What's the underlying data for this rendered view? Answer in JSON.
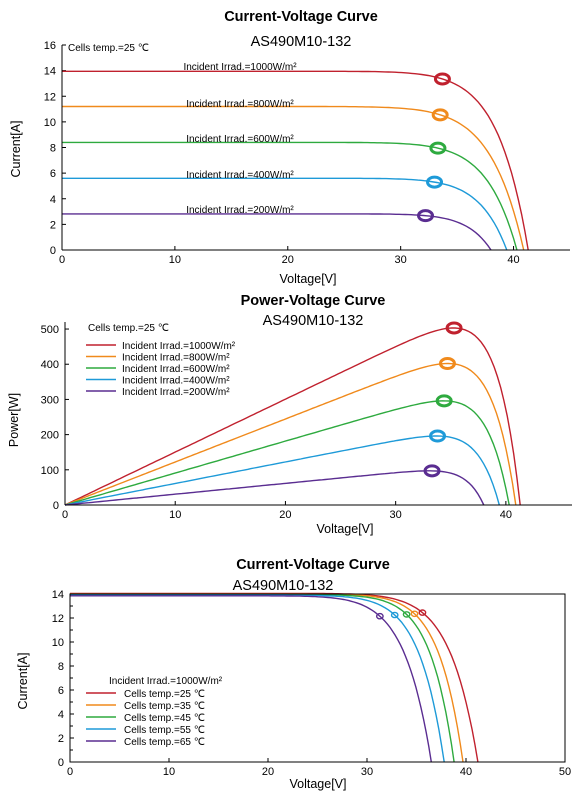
{
  "chart_data": [
    {
      "type": "line",
      "title": "Current-Voltage Curve",
      "subtitle": "AS490M10-132",
      "xlabel": "Voltage[V]",
      "ylabel": "Current[A]",
      "xlim": [
        0,
        45
      ],
      "ylim": [
        0,
        16
      ],
      "xticks": [
        "0",
        "10",
        "20",
        "30",
        "40"
      ],
      "yticks": [
        "0",
        "2",
        "4",
        "6",
        "8",
        "10",
        "12",
        "14",
        "16"
      ],
      "annotation": "Cells temp.=25 ℃",
      "grid": false,
      "series": [
        {
          "name": "Incident Irrad.=1000W/m²",
          "color": "#c0212e",
          "isc": 13.95,
          "voc": 41.3,
          "mpp": [
            33.7,
            13.35
          ]
        },
        {
          "name": "Incident Irrad.=800W/m²",
          "color": "#f08a1c",
          "isc": 11.2,
          "voc": 40.9,
          "mpp": [
            33.5,
            10.55
          ]
        },
        {
          "name": "Incident Irrad.=600W/m²",
          "color": "#2eaa3f",
          "isc": 8.4,
          "voc": 40.3,
          "mpp": [
            33.3,
            7.95
          ]
        },
        {
          "name": "Incident Irrad.=400W/m²",
          "color": "#1e9ad8",
          "isc": 5.6,
          "voc": 39.4,
          "mpp": [
            33.0,
            5.3
          ]
        },
        {
          "name": "Incident Irrad.=200W/m²",
          "color": "#5a2d91",
          "isc": 2.82,
          "voc": 38.0,
          "mpp": [
            32.2,
            2.68
          ]
        }
      ]
    },
    {
      "type": "line",
      "title": "Power-Voltage Curve",
      "subtitle": "AS490M10-132",
      "xlabel": "Voltage[V]",
      "ylabel": "Power[W]",
      "xlim": [
        0,
        46
      ],
      "ylim": [
        0,
        520
      ],
      "xticks": [
        "0",
        "10",
        "20",
        "30",
        "40"
      ],
      "yticks": [
        "0",
        "100",
        "200",
        "300",
        "400",
        "500"
      ],
      "annotation": "Cells temp.=25 ℃",
      "legend_position": "top-left",
      "grid": false,
      "series": [
        {
          "name": "Incident Irrad.=1000W/m²",
          "color": "#c0212e",
          "peak": [
            35.3,
            503
          ]
        },
        {
          "name": "Incident Irrad.=800W/m²",
          "color": "#f08a1c",
          "peak": [
            34.7,
            402
          ]
        },
        {
          "name": "Incident Irrad.=600W/m²",
          "color": "#2eaa3f",
          "peak": [
            34.4,
            296
          ]
        },
        {
          "name": "Incident Irrad.=400W/m²",
          "color": "#1e9ad8",
          "peak": [
            33.8,
            196
          ]
        },
        {
          "name": "Incident Irrad.=200W/m²",
          "color": "#5a2d91",
          "peak": [
            33.3,
            97
          ]
        }
      ]
    },
    {
      "type": "line",
      "title": "Current-Voltage Curve",
      "subtitle": "AS490M10-132",
      "xlabel": "Voltage[V]",
      "ylabel": "Current[A]",
      "xlim": [
        0,
        50
      ],
      "ylim": [
        0,
        14
      ],
      "xticks": [
        "0",
        "10",
        "20",
        "30",
        "40",
        "50"
      ],
      "yticks": [
        "0",
        "2",
        "4",
        "6",
        "8",
        "10",
        "12",
        "14"
      ],
      "legend_title": "Incident Irrad.=1000W/m²",
      "legend_position": "bottom-left",
      "grid": false,
      "series": [
        {
          "name": "Cells temp.=25 ℃",
          "color": "#c0212e",
          "isc": 14.05,
          "voc": 41.2,
          "mpp": [
            35.6,
            12.45
          ]
        },
        {
          "name": "Cells temp.=35 ℃",
          "color": "#f08a1c",
          "isc": 14.0,
          "voc": 39.7,
          "mpp": [
            34.8,
            12.35
          ]
        },
        {
          "name": "Cells temp.=45 ℃",
          "color": "#2eaa3f",
          "isc": 13.95,
          "voc": 38.8,
          "mpp": [
            34.0,
            12.3
          ]
        },
        {
          "name": "Cells temp.=55 ℃",
          "color": "#1e9ad8",
          "isc": 13.9,
          "voc": 37.8,
          "mpp": [
            32.8,
            12.25
          ]
        },
        {
          "name": "Cells temp.=65 ℃",
          "color": "#5a2d91",
          "isc": 13.85,
          "voc": 36.5,
          "mpp": [
            31.3,
            12.15
          ]
        }
      ]
    }
  ]
}
